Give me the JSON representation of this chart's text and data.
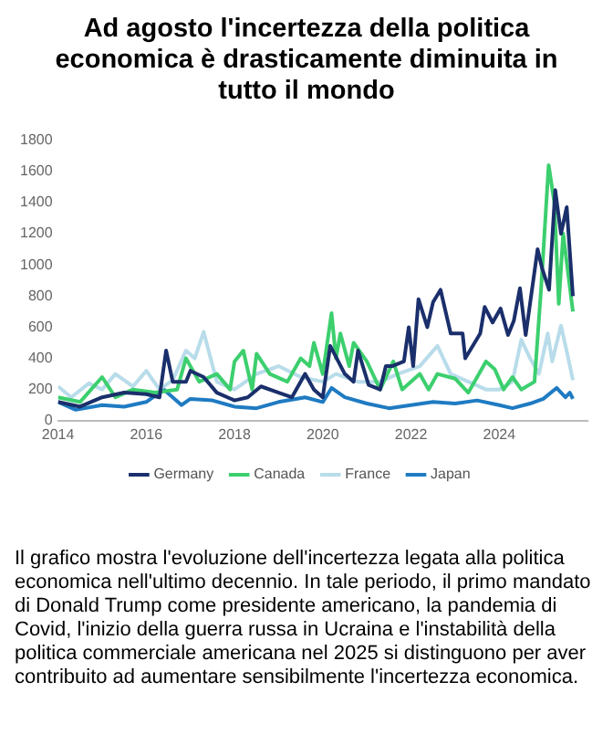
{
  "chart_data": {
    "type": "line",
    "title": "Ad agosto l'incertezza della politica economica è drasticamente diminuita in tutto il mondo",
    "annotations": [
      "Il grafico mostra l'evoluzione dell'incertezza legata alla politica economica nell'ultimo decennio. In tale periodo, il primo mandato di Donald Trump come presidente americano, la pandemia di Covid, l'inizio della guerra russa in Ucraina e l'instabilità della politica commerciale americana nel 2025 si distinguono per aver contribuito ad aumentare sensibilmente l'incertezza economica."
    ],
    "xlim": [
      2014,
      2026
    ],
    "xticks": [
      2014,
      2016,
      2018,
      2020,
      2022,
      2024
    ],
    "ylim": [
      0,
      1800
    ],
    "yticks": [
      0,
      200,
      400,
      600,
      800,
      1000,
      1200,
      1400,
      1600,
      1800
    ],
    "grid": false,
    "legend": "bottom",
    "series": [
      {
        "name": "Germany",
        "color": "#1a2f6b",
        "x": [
          2014,
          2014.5,
          2015,
          2015.5,
          2016,
          2016.3,
          2016.45,
          2016.6,
          2016.9,
          2017,
          2017.3,
          2017.6,
          2018,
          2018.3,
          2018.6,
          2019,
          2019.3,
          2019.6,
          2019.8,
          2020,
          2020.17,
          2020.5,
          2020.7,
          2020.8,
          2021.04,
          2021.3,
          2021.43,
          2021.57,
          2021.84,
          2021.95,
          2022.05,
          2022.17,
          2022.37,
          2022.5,
          2022.67,
          2022.9,
          2023.17,
          2023.23,
          2023.57,
          2023.67,
          2023.85,
          2024.03,
          2024.2,
          2024.33,
          2024.47,
          2024.6,
          2024.87,
          2024.97,
          2025.13,
          2025.27,
          2025.4,
          2025.53,
          2025.67
        ],
        "values": [
          120,
          90,
          150,
          180,
          170,
          150,
          450,
          250,
          250,
          320,
          280,
          180,
          130,
          150,
          220,
          180,
          150,
          300,
          200,
          150,
          480,
          300,
          250,
          450,
          230,
          200,
          350,
          350,
          380,
          600,
          350,
          780,
          600,
          760,
          840,
          560,
          560,
          400,
          560,
          730,
          630,
          720,
          550,
          640,
          850,
          550,
          1100,
          980,
          840,
          1480,
          1200,
          1370,
          800
        ]
      },
      {
        "name": "Canada",
        "color": "#3ccf6e",
        "x": [
          2014,
          2014.5,
          2015,
          2015.3,
          2015.7,
          2016.2,
          2016.7,
          2016.9,
          2017.2,
          2017.6,
          2017.9,
          2018,
          2018.2,
          2018.4,
          2018.5,
          2018.8,
          2019.2,
          2019.5,
          2019.7,
          2019.8,
          2020,
          2020.2,
          2020.3,
          2020.4,
          2020.6,
          2020.7,
          2021,
          2021.3,
          2021.6,
          2021.8,
          2022.2,
          2022.4,
          2022.6,
          2023,
          2023.3,
          2023.5,
          2023.7,
          2023.9,
          2024.1,
          2024.3,
          2024.5,
          2024.8,
          2024.95,
          2025.12,
          2025.25,
          2025.35,
          2025.45,
          2025.67
        ],
        "values": [
          150,
          120,
          280,
          150,
          200,
          180,
          200,
          400,
          250,
          300,
          200,
          380,
          450,
          200,
          430,
          300,
          250,
          400,
          350,
          500,
          300,
          690,
          400,
          560,
          350,
          500,
          380,
          200,
          380,
          200,
          300,
          200,
          300,
          270,
          180,
          280,
          380,
          330,
          200,
          280,
          200,
          250,
          850,
          1640,
          1400,
          750,
          1200,
          700
        ]
      },
      {
        "name": "France",
        "color": "#b8dcea",
        "x": [
          2014,
          2014.3,
          2014.7,
          2015,
          2015.3,
          2015.7,
          2016,
          2016.3,
          2016.6,
          2016.9,
          2017.1,
          2017.3,
          2017.6,
          2018,
          2018.5,
          2019,
          2019.5,
          2020,
          2020.3,
          2020.8,
          2021.3,
          2021.7,
          2022.2,
          2022.6,
          2022.9,
          2023.3,
          2023.7,
          2024,
          2024.3,
          2024.5,
          2024.7,
          2024.9,
          2025.1,
          2025.2,
          2025.4,
          2025.55,
          2025.67
        ],
        "values": [
          220,
          150,
          240,
          200,
          300,
          220,
          320,
          200,
          260,
          450,
          400,
          570,
          250,
          200,
          300,
          350,
          280,
          250,
          300,
          250,
          250,
          300,
          350,
          480,
          300,
          250,
          200,
          200,
          250,
          520,
          400,
          300,
          560,
          380,
          610,
          420,
          260
        ]
      },
      {
        "name": "Japan",
        "color": "#1f7bc2",
        "x": [
          2014,
          2014.4,
          2015,
          2015.5,
          2016,
          2016.4,
          2016.8,
          2017,
          2017.5,
          2018,
          2018.5,
          2019,
          2019.6,
          2020,
          2020.2,
          2020.5,
          2021,
          2021.5,
          2022,
          2022.5,
          2023,
          2023.5,
          2024,
          2024.3,
          2024.7,
          2025,
          2025.3,
          2025.5,
          2025.6,
          2025.67
        ],
        "values": [
          120,
          70,
          100,
          90,
          120,
          200,
          100,
          140,
          130,
          90,
          80,
          120,
          150,
          120,
          210,
          150,
          110,
          80,
          100,
          120,
          110,
          130,
          100,
          80,
          110,
          140,
          210,
          150,
          180,
          140
        ]
      }
    ]
  }
}
